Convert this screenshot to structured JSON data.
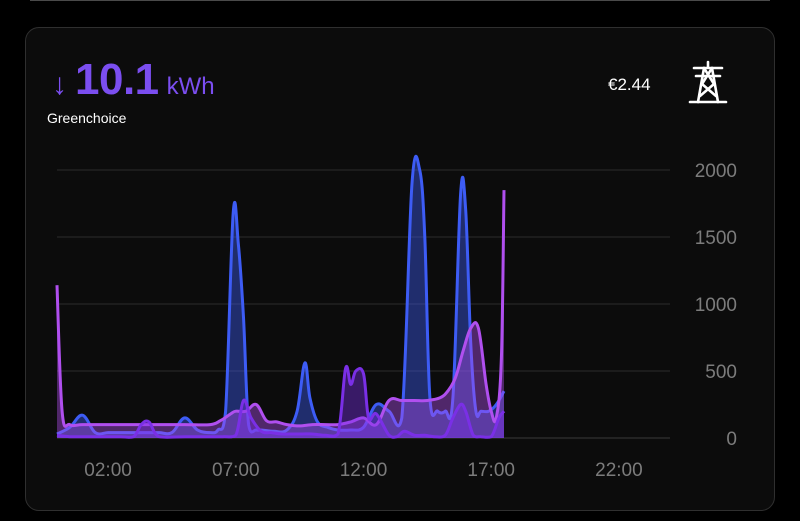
{
  "header": {
    "direction_icon": "arrow-down-icon",
    "value": "10.1",
    "unit": "kWh",
    "supplier": "Greenchoice",
    "cost": "€2.44",
    "meter_icon": "power-pylon-icon",
    "accent_color": "#7b4ef0"
  },
  "chart_data": {
    "type": "area",
    "x_ticks": [
      "02:00",
      "07:00",
      "12:00",
      "17:00",
      "22:00"
    ],
    "y_ticks": [
      "2000",
      "1500",
      "1000",
      "500",
      "0"
    ],
    "ylim": [
      0,
      2000
    ],
    "xlim_hours": [
      0,
      24
    ],
    "grid": true,
    "series": [
      {
        "color": "#3d5cf5",
        "x": [
          0,
          0.5,
          1.0,
          1.5,
          2.0,
          2.5,
          3.0,
          3.5,
          4.0,
          4.5,
          5.0,
          5.5,
          6.0,
          6.3,
          6.6,
          6.9,
          7.1,
          7.3,
          7.5,
          7.8,
          8.0,
          8.5,
          9.0,
          9.4,
          9.7,
          9.9,
          10.2,
          10.6,
          11.0,
          11.5,
          12.0,
          12.5,
          13.0,
          13.5,
          13.9,
          14.2,
          14.4,
          14.6,
          14.9,
          15.2,
          15.5,
          15.8,
          16.0,
          16.2,
          16.4,
          16.6,
          16.9,
          17.2,
          17.5
        ],
        "y": [
          30,
          80,
          170,
          40,
          40,
          40,
          40,
          40,
          40,
          40,
          150,
          60,
          40,
          60,
          200,
          1680,
          1450,
          900,
          100,
          60,
          60,
          50,
          60,
          200,
          560,
          300,
          120,
          80,
          60,
          60,
          80,
          250,
          200,
          150,
          1900,
          2000,
          1500,
          300,
          200,
          200,
          300,
          1820,
          1700,
          700,
          200,
          200,
          200,
          250,
          350
        ]
      },
      {
        "color": "#b04fef",
        "x": [
          0,
          0.2,
          0.5,
          1.0,
          2.0,
          3.0,
          4.0,
          5.0,
          6.0,
          6.4,
          6.8,
          7.0,
          7.4,
          7.8,
          8.2,
          8.6,
          9.0,
          9.5,
          10.0,
          10.5,
          11.0,
          11.5,
          12.0,
          12.5,
          13.0,
          13.5,
          14.0,
          14.5,
          15.0,
          15.3,
          15.6,
          15.9,
          16.2,
          16.5,
          16.8,
          17.0,
          17.2,
          17.4,
          17.5
        ],
        "y": [
          1140,
          200,
          100,
          100,
          100,
          100,
          100,
          100,
          100,
          130,
          180,
          200,
          200,
          250,
          130,
          120,
          100,
          90,
          100,
          100,
          100,
          120,
          150,
          100,
          280,
          280,
          280,
          280,
          300,
          350,
          450,
          650,
          820,
          820,
          400,
          200,
          150,
          600,
          1850
        ]
      },
      {
        "color": "#7a2fe6",
        "x": [
          0,
          0.5,
          1.0,
          1.5,
          2.0,
          2.5,
          3.0,
          3.3,
          3.6,
          4.0,
          5.0,
          6.0,
          6.5,
          7.0,
          7.3,
          7.6,
          8.0,
          8.4,
          8.8,
          9.2,
          9.6,
          10.0,
          10.5,
          11.0,
          11.3,
          11.5,
          11.7,
          12.0,
          12.2,
          12.5,
          13.0,
          13.3,
          13.6,
          14.0,
          14.4,
          14.8,
          15.2,
          15.5,
          15.8,
          16.0,
          16.3,
          16.6,
          17.0,
          17.3,
          17.5
        ],
        "y": [
          20,
          10,
          10,
          10,
          10,
          10,
          10,
          100,
          120,
          10,
          10,
          10,
          10,
          20,
          280,
          150,
          50,
          40,
          30,
          30,
          30,
          30,
          20,
          30,
          520,
          400,
          500,
          480,
          150,
          180,
          20,
          10,
          50,
          20,
          20,
          10,
          20,
          150,
          250,
          200,
          20,
          10,
          10,
          150,
          200
        ]
      }
    ]
  }
}
